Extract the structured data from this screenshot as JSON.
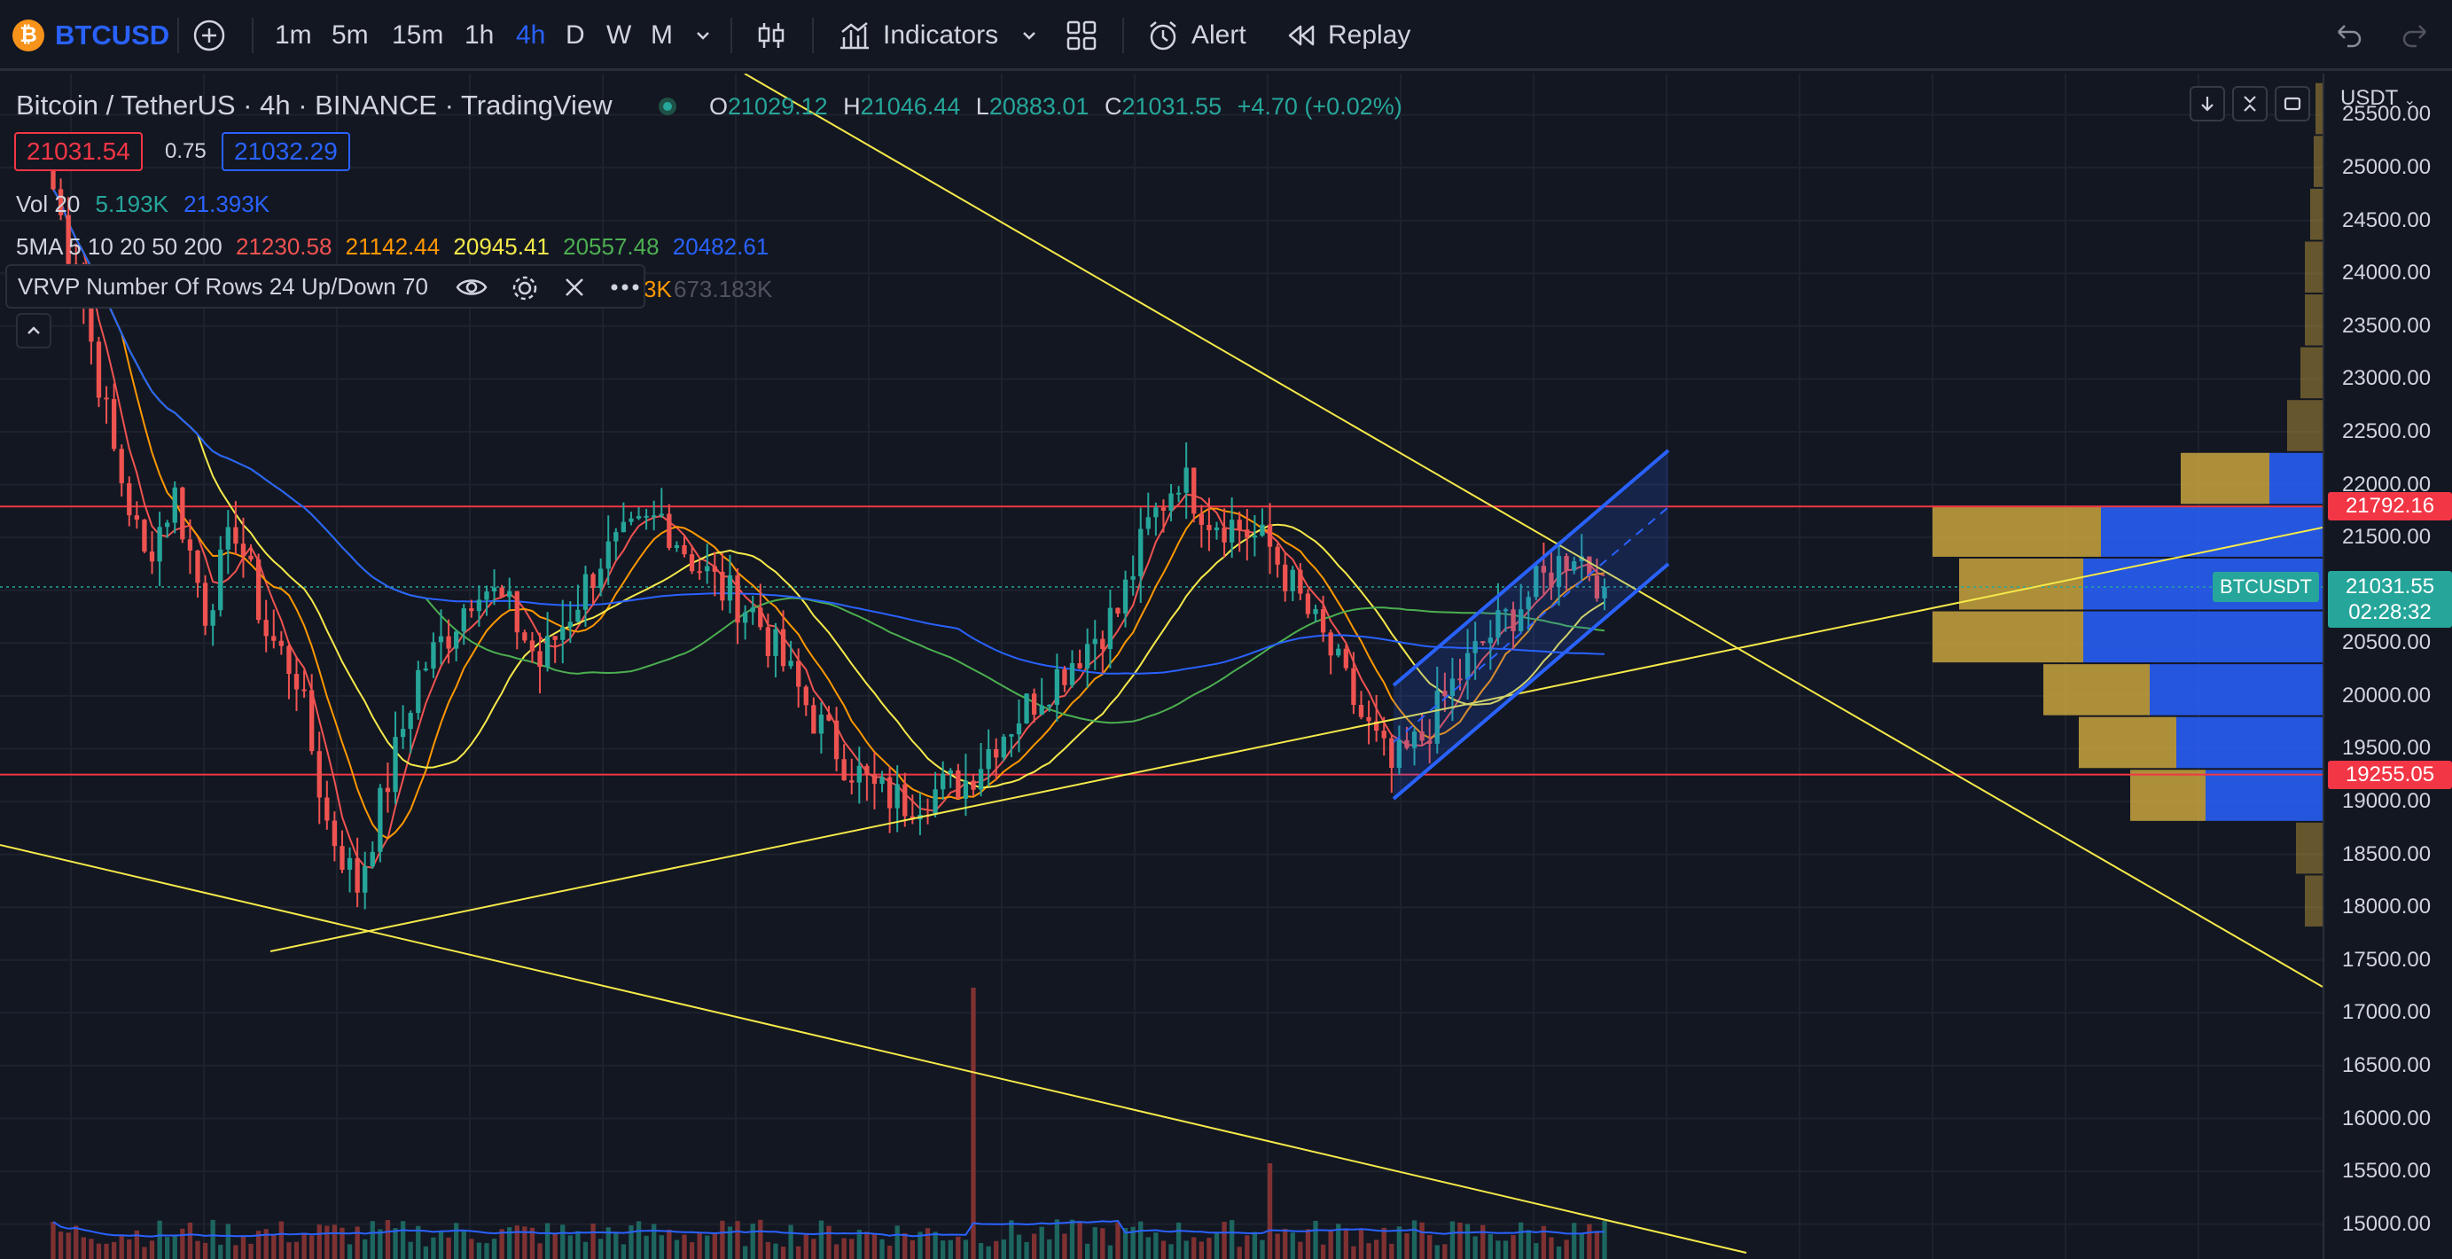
{
  "toolbar": {
    "symbol": "BTCUSD",
    "intervals": [
      "1m",
      "5m",
      "15m",
      "1h",
      "4h",
      "D",
      "W",
      "M"
    ],
    "active_interval": "4h",
    "indicators_label": "Indicators",
    "alert_label": "Alert",
    "replay_label": "Replay"
  },
  "legend": {
    "title": "Bitcoin / TetherUS",
    "interval": "4h",
    "exchange": "BINANCE",
    "source": "TradingView",
    "ohlc": {
      "o_label": "O",
      "o": "21029.12",
      "h_label": "H",
      "h": "21046.44",
      "l_label": "L",
      "l": "20883.01",
      "c_label": "C",
      "c": "21031.55",
      "change": "+4.70 (+0.02%)"
    },
    "bid": "21031.54",
    "spread": "0.75",
    "ask": "21032.29",
    "vol_label": "Vol 20",
    "vol_a": "5.193K",
    "vol_b": "21.393K",
    "ma_label": "5MA 5 10 20 50 200",
    "ma_values": [
      "21230.58",
      "21142.44",
      "20945.41",
      "20557.48",
      "20482.61"
    ],
    "vrvp_label": "VRVP Number Of Rows 24 Up/Down 70",
    "vrvp_hidden_a": "3K",
    "vrvp_hidden_b": "673.183K"
  },
  "price_axis": {
    "currency": "USDT",
    "ticks": [
      "25500.00",
      "25000.00",
      "24500.00",
      "24000.00",
      "23500.00",
      "23000.00",
      "22500.00",
      "22000.00",
      "21500.00",
      "21000.00",
      "20500.00",
      "20000.00",
      "19500.00",
      "19000.00",
      "18500.00",
      "18000.00",
      "17500.00",
      "17000.00",
      "16500.00",
      "16000.00",
      "15500.00",
      "15000.00"
    ],
    "resistance_tag": "21792.16",
    "support_tag": "19255.05",
    "last_price": "21031.55",
    "countdown": "02:28:32",
    "symbol_tag": "BTCUSDT"
  },
  "colors": {
    "up": "#26a69a",
    "down": "#ef5350",
    "accent": "#2962ff",
    "trendline": "#f5e94a",
    "level": "#f23645"
  },
  "chart_data": {
    "type": "candlestick",
    "symbol": "BTCUSDT",
    "timeframe": "4h",
    "ylim": [
      14800,
      25800
    ],
    "horizontal_levels": [
      21792.16,
      19255.05
    ],
    "closes_approx": [
      24800,
      23700,
      22300,
      21300,
      21900,
      20800,
      21600,
      20600,
      20200,
      18800,
      18200,
      19200,
      20200,
      20600,
      21100,
      20800,
      20300,
      20800,
      21300,
      21500,
      21700,
      21300,
      21000,
      20800,
      20300,
      19800,
      19400,
      19100,
      19000,
      19100,
      19200,
      19600,
      19900,
      20200,
      20500,
      20800,
      21600,
      22100,
      21700,
      21600,
      21400,
      20900,
      20400,
      19800,
      19300,
      19600,
      20100,
      20500,
      20800,
      21100,
      21400,
      21031.55
    ],
    "volume_axis": "overlay"
  }
}
